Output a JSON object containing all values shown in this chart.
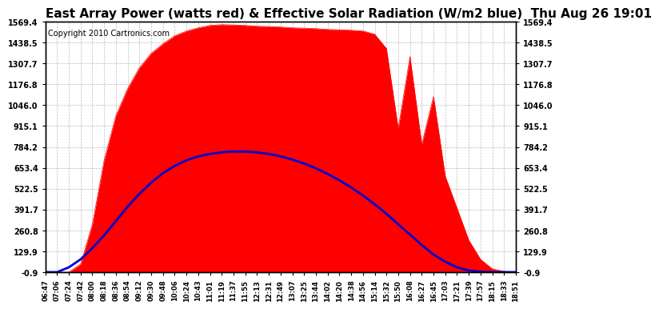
{
  "title": "East Array Power (watts red) & Effective Solar Radiation (W/m2 blue)  Thu Aug 26 19:01",
  "copyright": "Copyright 2010 Cartronics.com",
  "ymin": -0.9,
  "ymax": 1569.4,
  "yticks": [
    1569.4,
    1438.5,
    1307.7,
    1176.8,
    1046.0,
    915.1,
    784.2,
    653.4,
    522.5,
    391.7,
    260.8,
    129.9,
    -0.9
  ],
  "xtick_labels": [
    "06:47",
    "07:06",
    "07:24",
    "07:42",
    "08:00",
    "08:18",
    "08:36",
    "08:54",
    "09:12",
    "09:30",
    "09:48",
    "10:06",
    "10:24",
    "10:43",
    "11:01",
    "11:19",
    "11:37",
    "11:55",
    "12:13",
    "12:31",
    "12:49",
    "13:07",
    "13:25",
    "13:44",
    "14:02",
    "14:20",
    "14:38",
    "14:56",
    "15:14",
    "15:32",
    "15:50",
    "16:08",
    "16:27",
    "16:45",
    "17:03",
    "17:21",
    "17:39",
    "17:57",
    "18:15",
    "18:33",
    "18:51"
  ],
  "bg_color": "#ffffff",
  "plot_bg_color": "#ffffff",
  "grid_color": "#aaaaaa",
  "red_color": "#ff0000",
  "blue_color": "#0000cc",
  "title_color": "#000000",
  "title_fontsize": 11,
  "copyright_fontsize": 7,
  "pwr": [
    0,
    0,
    0,
    50,
    300,
    700,
    980,
    1150,
    1280,
    1370,
    1430,
    1480,
    1510,
    1530,
    1545,
    1550,
    1548,
    1545,
    1540,
    1538,
    1535,
    1530,
    1528,
    1525,
    1520,
    1518,
    1515,
    1510,
    1490,
    1400,
    900,
    1350,
    800,
    1100,
    600,
    400,
    200,
    80,
    20,
    5,
    0
  ],
  "sol": [
    0,
    0,
    30,
    80,
    150,
    230,
    320,
    410,
    490,
    560,
    620,
    665,
    700,
    725,
    740,
    750,
    755,
    755,
    750,
    740,
    725,
    705,
    680,
    650,
    615,
    575,
    530,
    480,
    425,
    365,
    300,
    235,
    170,
    110,
    65,
    30,
    10,
    2,
    0,
    0,
    0
  ]
}
